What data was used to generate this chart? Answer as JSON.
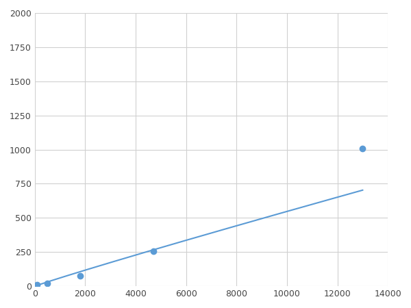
{
  "x": [
    100,
    500,
    1800,
    4700,
    13000
  ],
  "y": [
    10,
    22,
    75,
    255,
    1010
  ],
  "line_color": "#5b9bd5",
  "marker_color": "#5b9bd5",
  "marker_size": 6,
  "xlim": [
    0,
    14000
  ],
  "ylim": [
    0,
    2000
  ],
  "xticks": [
    0,
    2000,
    4000,
    6000,
    8000,
    10000,
    12000,
    14000
  ],
  "yticks": [
    0,
    250,
    500,
    750,
    1000,
    1250,
    1500,
    1750,
    2000
  ],
  "grid_color": "#d0d0d0",
  "background_color": "#ffffff",
  "figsize": [
    6.0,
    4.5
  ],
  "dpi": 100
}
